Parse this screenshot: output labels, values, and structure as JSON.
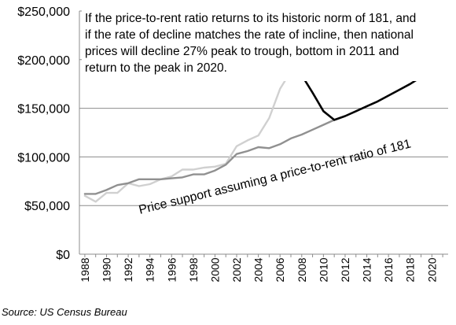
{
  "chart_data": {
    "type": "line",
    "title": "",
    "xlabel": "",
    "ylabel": "",
    "xlim": [
      1987.5,
      2021.5
    ],
    "ylim": [
      0,
      250000
    ],
    "grid": "horizontal",
    "legend": "none",
    "y_ticks": [
      "$0",
      "$50,000",
      "$100,000",
      "$150,000",
      "$200,000",
      "$250,000"
    ],
    "x_ticks": [
      "1988",
      "1990",
      "1992",
      "1994",
      "1996",
      "1998",
      "2000",
      "2002",
      "2004",
      "2006",
      "2008",
      "2010",
      "2012",
      "2014",
      "2016",
      "2018",
      "2020"
    ],
    "series": [
      {
        "color": "#d0d0d0",
        "x": [
          1988,
          1989,
          1990,
          1991,
          1992,
          1993,
          1994,
          1995,
          1996,
          1997,
          1998,
          1999,
          2000,
          2001,
          2002,
          2003,
          2004,
          2005,
          2006,
          2007
        ],
        "y": [
          60000,
          54000,
          63000,
          63000,
          73000,
          70000,
          72000,
          77000,
          80000,
          87000,
          87000,
          89000,
          90000,
          93000,
          111000,
          117000,
          122000,
          140000,
          170000,
          188000
        ]
      },
      {
        "color": "#909090",
        "x": [
          1988,
          1989,
          1990,
          1991,
          1992,
          1993,
          1994,
          1995,
          1996,
          1997,
          1998,
          1999,
          2000,
          2001,
          2002,
          2003,
          2004,
          2005,
          2006,
          2007,
          2008,
          2009,
          2010,
          2011
        ],
        "y": [
          62000,
          62000,
          66000,
          71000,
          73000,
          77000,
          77000,
          77000,
          78000,
          79000,
          82000,
          82000,
          86000,
          92000,
          103000,
          106000,
          110000,
          109000,
          113000,
          119000,
          123000,
          128000,
          133000,
          138000
        ]
      },
      {
        "color": "#000000",
        "x": [
          2007,
          2008,
          2009,
          2010,
          2011,
          2012,
          2013,
          2014,
          2015,
          2016,
          2017,
          2018,
          2019,
          2020,
          2021
        ],
        "y": [
          188000,
          184000,
          166000,
          147000,
          138000,
          142000,
          147000,
          152000,
          157000,
          163000,
          169000,
          175000,
          182000,
          189000,
          196000
        ]
      }
    ],
    "annotations": {
      "box_lines": [
        "If the price-to-rent ratio returns to its historic norm of 181, and",
        "if the rate of decline matches the rate of incline, then national",
        "prices will decline 27% peak to trough, bottom in 2011 and",
        "return to the peak in 2020."
      ],
      "support_label": "Price support assuming a price-to-rent ratio of 181"
    },
    "source": "Source: US Census Bureau"
  }
}
